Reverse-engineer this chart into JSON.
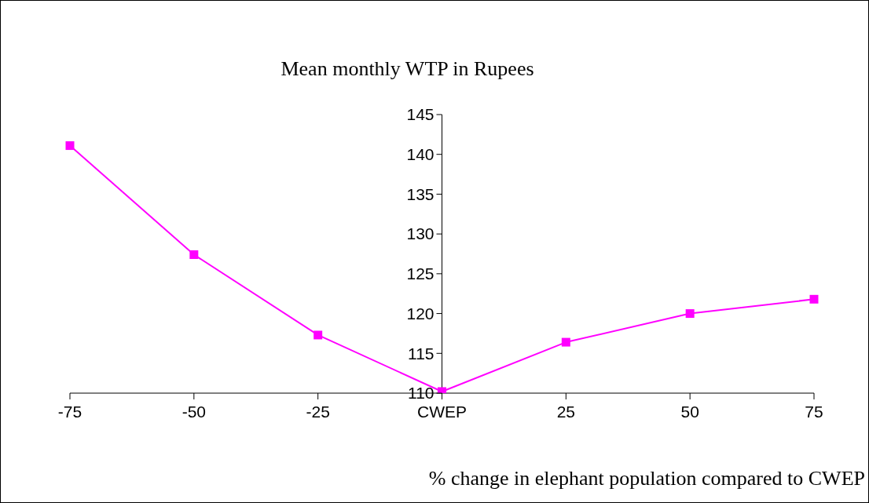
{
  "chart_data": {
    "type": "line",
    "title": "Mean monthly WTP in Rupees",
    "xlabel": "% change in elephant population compared to CWEP",
    "categories": [
      "-75",
      "-50",
      "-25",
      "CWEP",
      "25",
      "50",
      "75"
    ],
    "series": [
      {
        "color": "#ff00ff",
        "values": [
          141.1,
          127.4,
          117.3,
          110.2,
          116.4,
          120.0,
          121.8
        ]
      }
    ],
    "ylim": [
      110,
      145
    ],
    "yticks": [
      110,
      115,
      120,
      125,
      130,
      135,
      140,
      145
    ],
    "marker": "square"
  }
}
